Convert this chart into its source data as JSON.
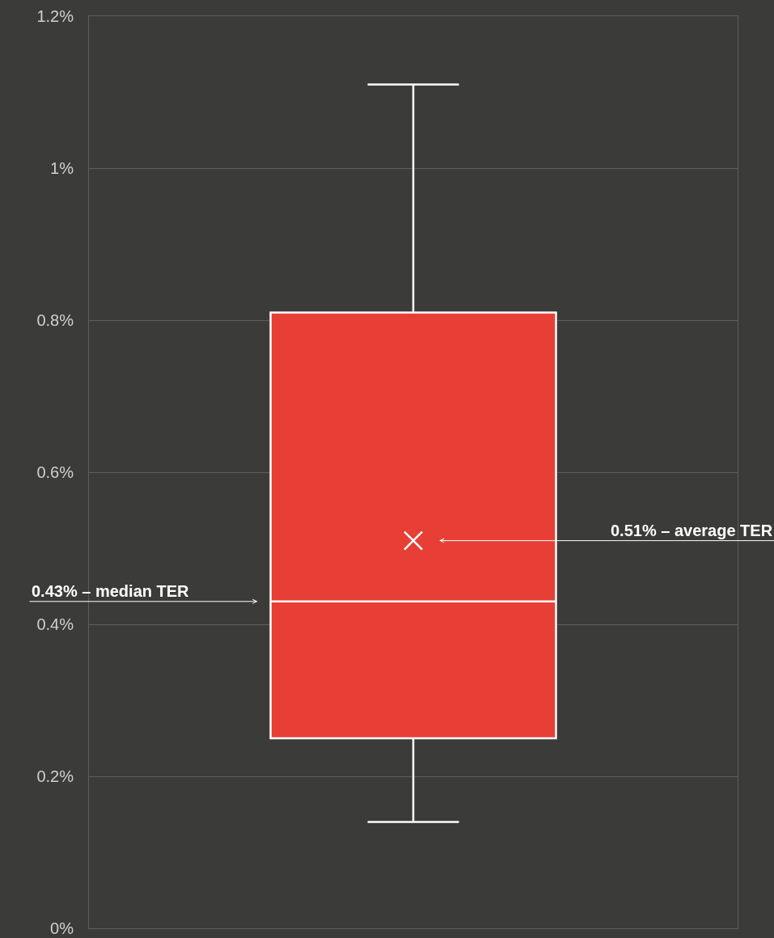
{
  "chart_data": {
    "type": "box",
    "categories": [
      null
    ],
    "boxes": [
      {
        "low": 0.14,
        "q1": 0.25,
        "median": 0.43,
        "q3": 0.81,
        "high": 1.11,
        "mean": 0.51
      }
    ],
    "color": "#e73f35",
    "ylim": [
      0,
      1.2
    ],
    "yticks": [
      {
        "value": 0,
        "label": "0%"
      },
      {
        "value": 0.2,
        "label": "0.2%"
      },
      {
        "value": 0.4,
        "label": "0.4%"
      },
      {
        "value": 0.6,
        "label": "0.6%"
      },
      {
        "value": 0.8,
        "label": "0.8%"
      },
      {
        "value": 1,
        "label": "1%"
      },
      {
        "value": 1.2,
        "label": "1.2%"
      }
    ],
    "grid": "y",
    "tick_labels": "y",
    "marker": "cross",
    "annotations": [
      "0.43% – median TER",
      "0.51% – average TER"
    ]
  }
}
